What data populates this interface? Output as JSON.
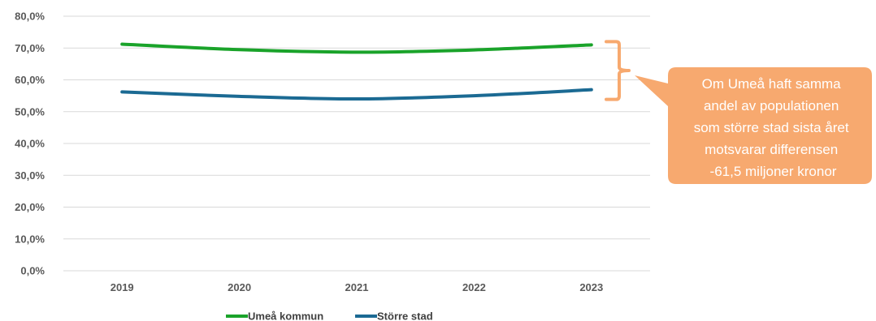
{
  "chart_data": {
    "type": "line",
    "title": "",
    "xlabel": "",
    "ylabel": "",
    "categories": [
      "2019",
      "2020",
      "2021",
      "2022",
      "2023"
    ],
    "y_ticks": [
      "0,0%",
      "10,0%",
      "20,0%",
      "30,0%",
      "40,0%",
      "50,0%",
      "60,0%",
      "70,0%",
      "80,0%"
    ],
    "ylim": [
      0,
      80
    ],
    "grid": true,
    "legend_position": "bottom",
    "series": [
      {
        "name": "Umeå kommun",
        "color": "#1aa32a",
        "values": [
          71.2,
          69.5,
          68.7,
          69.4,
          71.0
        ]
      },
      {
        "name": "Större stad",
        "color": "#1b6a93",
        "values": [
          56.2,
          54.8,
          54.0,
          55.0,
          56.9
        ]
      }
    ],
    "annotation": {
      "color": "#f7a96f",
      "lines": [
        "Om Umeå haft samma",
        "andel av populationen",
        "som större stad sista året",
        "motsvarar differensen",
        "-61,5 miljoner kronor"
      ]
    }
  }
}
